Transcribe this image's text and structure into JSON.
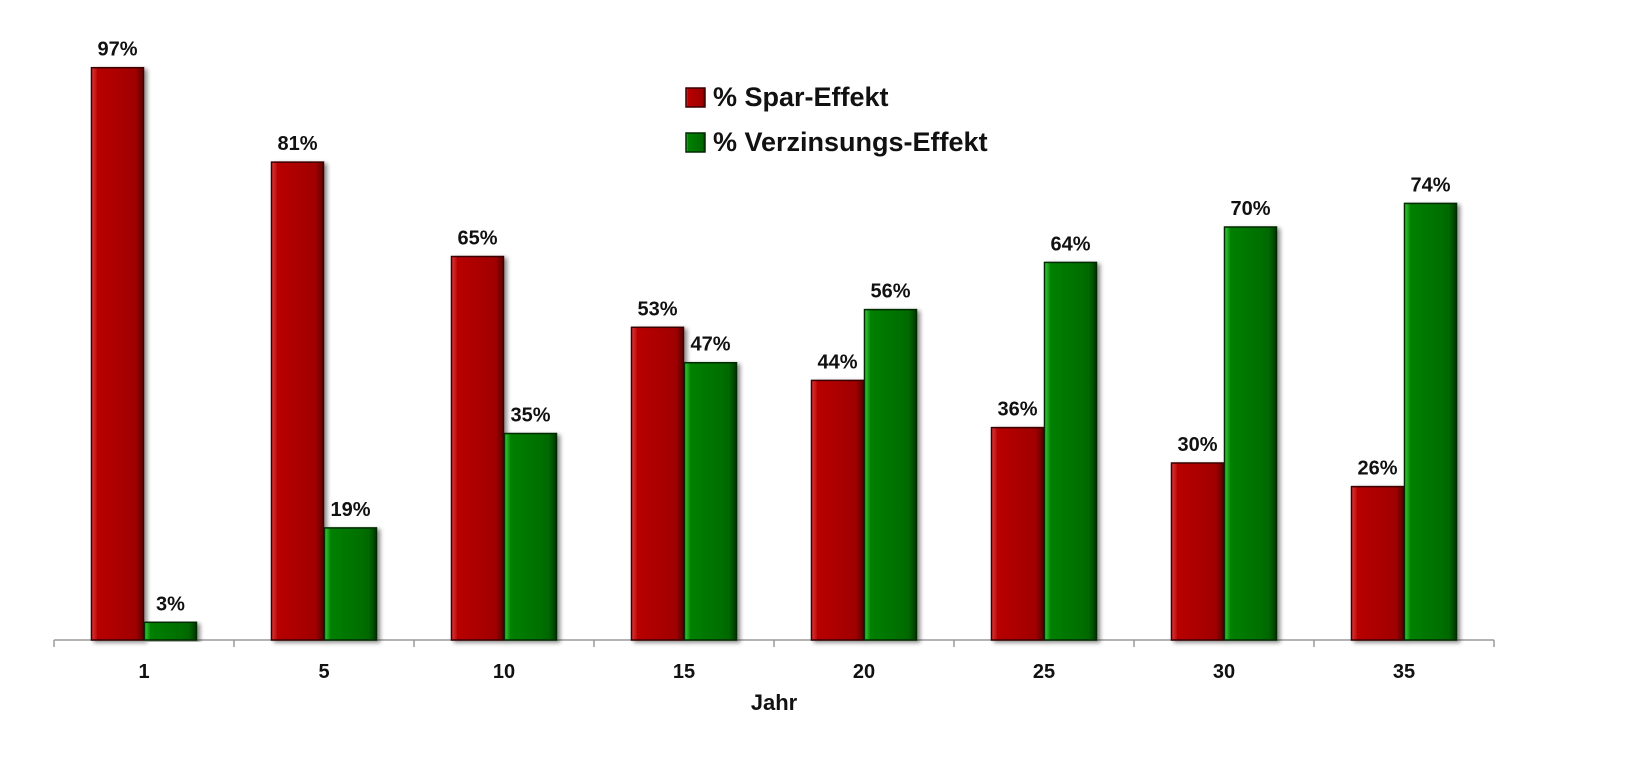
{
  "chart_data": {
    "type": "bar",
    "categories": [
      "1",
      "5",
      "10",
      "15",
      "20",
      "25",
      "30",
      "35"
    ],
    "series": [
      {
        "name": "% Spar-Effekt",
        "values": [
          97,
          81,
          65,
          53,
          44,
          36,
          30,
          26
        ],
        "labels": [
          "97%",
          "81%",
          "65%",
          "53%",
          "44%",
          "36%",
          "30%",
          "26%"
        ],
        "color": "#a80000"
      },
      {
        "name": "% Verzinsungs-Effekt",
        "values": [
          3,
          19,
          35,
          47,
          56,
          64,
          70,
          74
        ],
        "labels": [
          "3%",
          "19%",
          "35%",
          "47%",
          "56%",
          "64%",
          "70%",
          "74%"
        ],
        "color": "#007300"
      }
    ],
    "title": "",
    "xlabel": "Jahr",
    "ylabel": "",
    "ylim": [
      0,
      100
    ],
    "grid": false,
    "legend": "top-center",
    "data_labels": true
  }
}
